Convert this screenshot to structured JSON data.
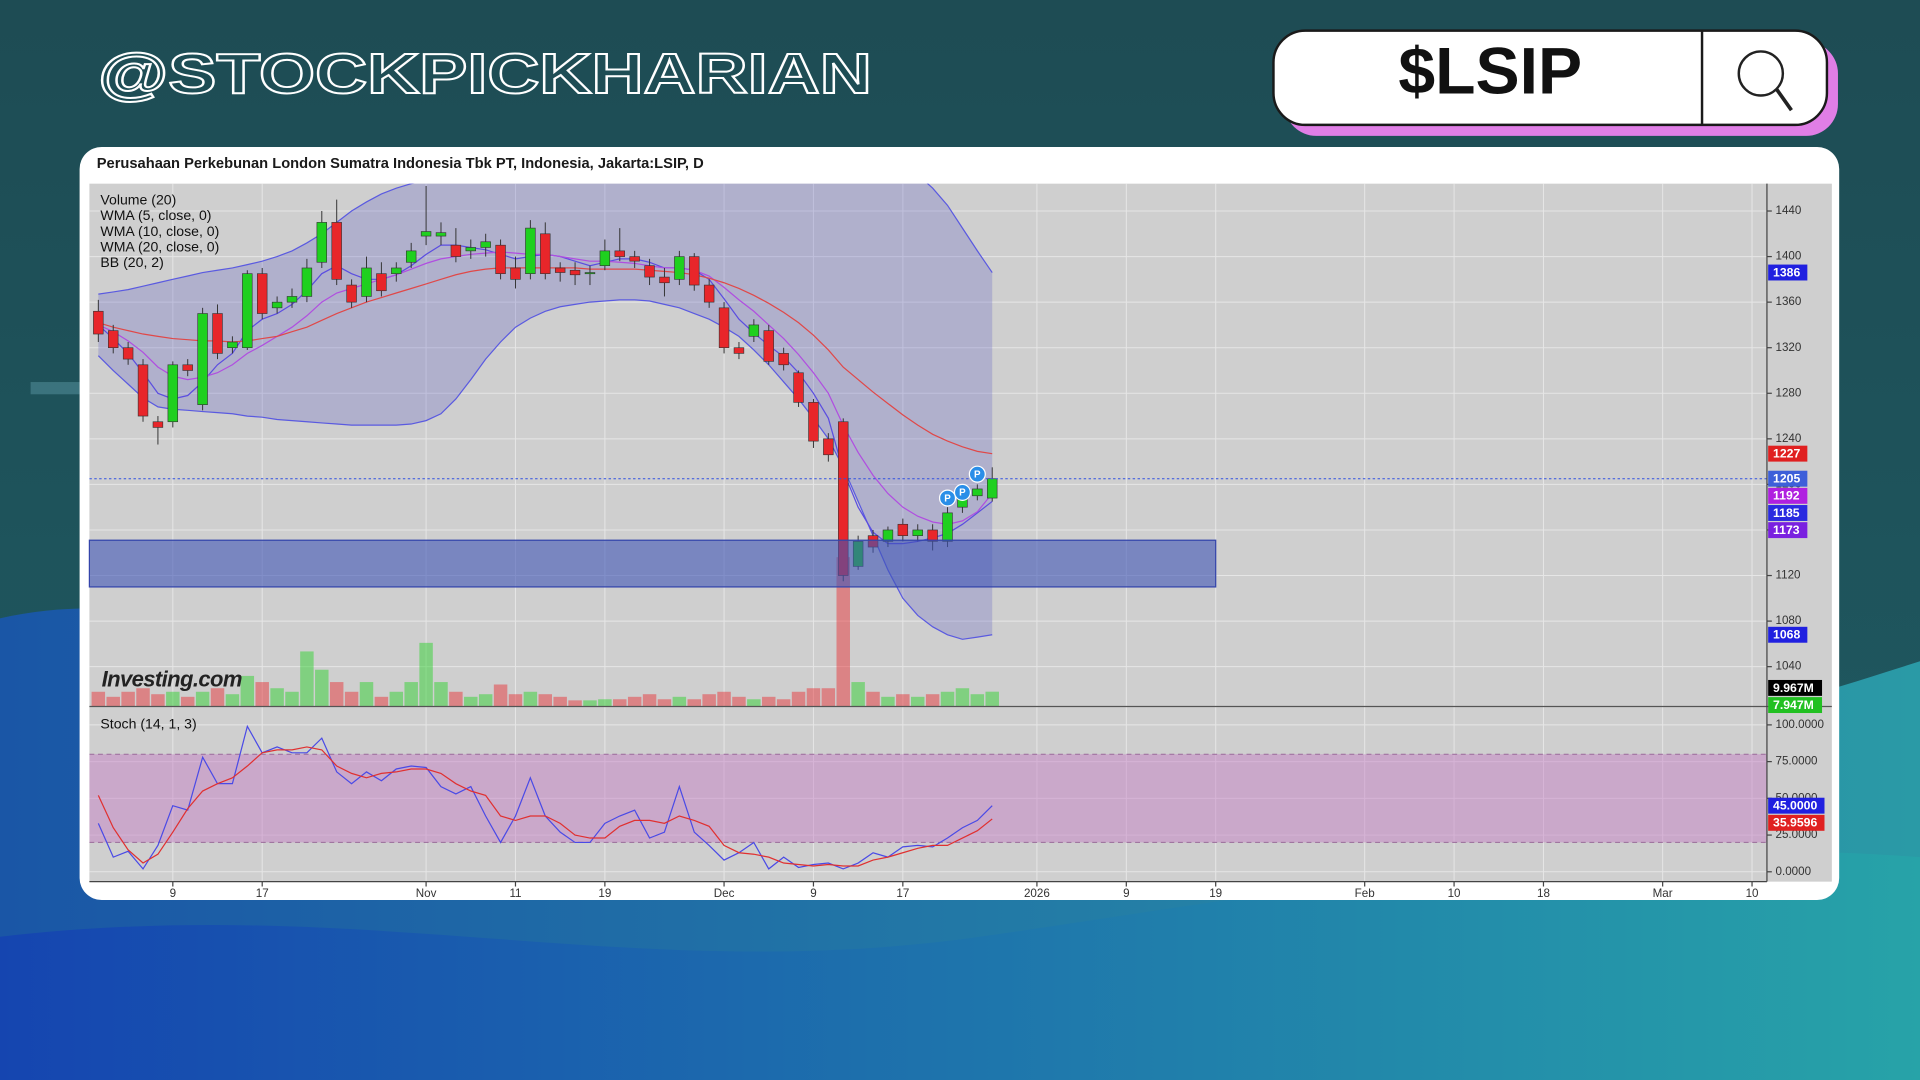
{
  "header": {
    "handle": "@STOCKPICKHARIAN",
    "search": "$LSIP"
  },
  "chart_data": {
    "type": "candlestick",
    "title": "Perusahaan Perkebunan London Sumatra Indonesia Tbk PT, Indonesia, Jakarta:LSIP, D",
    "legend": [
      "Volume (20)",
      "WMA (5, close, 0)",
      "WMA (10, close, 0)",
      "WMA (20, close, 0)",
      "BB (20, 2)"
    ],
    "watermark": "Investing.com",
    "x": [
      0,
      1,
      2,
      3,
      4,
      5,
      6,
      7,
      8,
      9,
      10,
      11,
      12,
      13,
      14,
      15,
      16,
      17,
      18,
      19,
      20,
      21,
      22,
      23,
      24,
      25,
      26,
      27,
      28,
      29,
      30,
      31,
      32,
      33,
      34,
      35,
      36,
      37,
      38,
      39,
      40,
      41,
      42,
      43,
      44,
      45,
      46,
      47,
      48,
      49,
      50,
      51,
      52,
      53,
      54,
      55,
      56,
      57,
      58,
      59,
      60
    ],
    "open": [
      1352,
      1335,
      1320,
      1305,
      1255,
      1255,
      1305,
      1270,
      1350,
      1320,
      1320,
      1385,
      1355,
      1360,
      1365,
      1395,
      1430,
      1375,
      1365,
      1385,
      1385,
      1395,
      1418,
      1418,
      1410,
      1405,
      1408,
      1410,
      1390,
      1385,
      1420,
      1390,
      1388,
      1385,
      1392,
      1405,
      1400,
      1392,
      1382,
      1380,
      1400,
      1375,
      1355,
      1320,
      1330,
      1335,
      1315,
      1298,
      1272,
      1240,
      1255,
      1128,
      1155,
      1150,
      1165,
      1155,
      1160,
      1150,
      1180,
      1190,
      1188
    ],
    "high": [
      1362,
      1340,
      1325,
      1310,
      1260,
      1308,
      1310,
      1355,
      1358,
      1330,
      1388,
      1390,
      1365,
      1372,
      1398,
      1440,
      1450,
      1380,
      1400,
      1395,
      1395,
      1412,
      1462,
      1430,
      1425,
      1415,
      1420,
      1415,
      1400,
      1432,
      1430,
      1395,
      1395,
      1392,
      1415,
      1425,
      1405,
      1398,
      1390,
      1405,
      1403,
      1380,
      1360,
      1325,
      1345,
      1340,
      1320,
      1300,
      1275,
      1245,
      1258,
      1155,
      1160,
      1163,
      1170,
      1165,
      1165,
      1180,
      1195,
      1200,
      1215
    ],
    "low": [
      1325,
      1315,
      1305,
      1255,
      1235,
      1250,
      1295,
      1265,
      1310,
      1315,
      1318,
      1345,
      1350,
      1355,
      1360,
      1390,
      1375,
      1355,
      1360,
      1365,
      1378,
      1390,
      1410,
      1410,
      1395,
      1398,
      1400,
      1380,
      1372,
      1380,
      1380,
      1378,
      1375,
      1375,
      1388,
      1396,
      1390,
      1375,
      1365,
      1375,
      1370,
      1355,
      1315,
      1310,
      1325,
      1305,
      1300,
      1268,
      1232,
      1220,
      1115,
      1125,
      1140,
      1145,
      1150,
      1150,
      1142,
      1145,
      1175,
      1186,
      1185
    ],
    "close": [
      1332,
      1320,
      1310,
      1260,
      1250,
      1305,
      1300,
      1350,
      1315,
      1325,
      1385,
      1350,
      1360,
      1365,
      1390,
      1430,
      1380,
      1360,
      1390,
      1370,
      1390,
      1405,
      1422,
      1421,
      1400,
      1408,
      1413,
      1385,
      1380,
      1425,
      1385,
      1386,
      1384,
      1386,
      1405,
      1400,
      1396,
      1382,
      1377,
      1400,
      1375,
      1360,
      1320,
      1315,
      1340,
      1308,
      1305,
      1272,
      1238,
      1226,
      1120,
      1150,
      1145,
      1160,
      1155,
      1160,
      1150,
      1175,
      1190,
      1196,
      1205
    ],
    "up_color": "#1fd01f",
    "down_color": "#e8262a",
    "volume": [
      7900000,
      5200000,
      7900000,
      9800000,
      6600000,
      7900000,
      5200000,
      7900000,
      9800000,
      6600000,
      16400000,
      13100000,
      9800000,
      7900000,
      29500000,
      19700000,
      13100000,
      7900000,
      13100000,
      5200000,
      7900000,
      13100000,
      34100000,
      13100000,
      7900000,
      5200000,
      6600000,
      11800000,
      6600000,
      7900000,
      6600000,
      5200000,
      3300000,
      3300000,
      3900000,
      3900000,
      5200000,
      6600000,
      3900000,
      5200000,
      3900000,
      6600000,
      7900000,
      5200000,
      3900000,
      5200000,
      3900000,
      7900000,
      9800000,
      9800000,
      80000000,
      13100000,
      7900000,
      5200000,
      6600000,
      5200000,
      6600000,
      7900000,
      9800000,
      6600000,
      7947000
    ],
    "volume_ylim": [
      0,
      280000000
    ],
    "volume_labels": [
      {
        "value": 9967000,
        "label": "9.967M",
        "color": "#000000"
      },
      {
        "value": 7947000,
        "label": "7.947M",
        "color": "#22c022"
      }
    ],
    "bands": {
      "color": "#5a5ae0",
      "fill": "#6a6ac8",
      "upper": [
        1367,
        1369,
        1371,
        1374,
        1377,
        1380,
        1383,
        1386,
        1388,
        1390,
        1393,
        1396,
        1400,
        1405,
        1412,
        1420,
        1430,
        1440,
        1448,
        1455,
        1460,
        1464,
        1467,
        1470,
        1472,
        1474,
        1475,
        1476,
        1476,
        1477,
        1477,
        1476,
        1476,
        1475,
        1475,
        1474,
        1474,
        1474,
        1475,
        1476,
        1478,
        1480,
        1482,
        1484,
        1486,
        1488,
        1490,
        1492,
        1494,
        1496,
        1498,
        1498,
        1496,
        1490,
        1482,
        1472,
        1460,
        1445,
        1425,
        1405,
        1386
      ],
      "lower": [
        1313,
        1300,
        1288,
        1276,
        1268,
        1266,
        1265,
        1264,
        1263,
        1262,
        1260,
        1259,
        1257,
        1256,
        1255,
        1254,
        1253,
        1252,
        1252,
        1252,
        1252,
        1253,
        1256,
        1262,
        1275,
        1292,
        1310,
        1325,
        1338,
        1346,
        1352,
        1356,
        1358,
        1360,
        1361,
        1362,
        1362,
        1361,
        1358,
        1355,
        1350,
        1345,
        1338,
        1330,
        1318,
        1305,
        1290,
        1275,
        1258,
        1240,
        1215,
        1185,
        1155,
        1125,
        1100,
        1085,
        1075,
        1068,
        1064,
        1066,
        1068
      ]
    },
    "overlays": [
      {
        "color": "#5b4de0",
        "values": [
          1340,
          1328,
          1315,
          1298,
          1280,
          1275,
          1278,
          1290,
          1305,
          1315,
          1335,
          1345,
          1350,
          1358,
          1370,
          1385,
          1392,
          1385,
          1380,
          1380,
          1384,
          1392,
          1402,
          1410,
          1410,
          1408,
          1406,
          1402,
          1398,
          1400,
          1402,
          1400,
          1396,
          1392,
          1395,
          1398,
          1398,
          1395,
          1390,
          1390,
          1388,
          1380,
          1363,
          1345,
          1333,
          1322,
          1312,
          1298,
          1280,
          1258,
          1212,
          1180,
          1158,
          1148,
          1148,
          1150,
          1153,
          1157,
          1165,
          1175,
          1185
        ]
      },
      {
        "color": "#b04ee0",
        "values": [
          1340,
          1334,
          1326,
          1316,
          1303,
          1295,
          1292,
          1294,
          1298,
          1305,
          1315,
          1322,
          1330,
          1338,
          1348,
          1360,
          1368,
          1372,
          1376,
          1380,
          1384,
          1389,
          1394,
          1398,
          1400,
          1402,
          1403,
          1404,
          1403,
          1402,
          1402,
          1400,
          1398,
          1396,
          1396,
          1395,
          1394,
          1392,
          1390,
          1390,
          1388,
          1383,
          1373,
          1362,
          1352,
          1340,
          1328,
          1314,
          1298,
          1280,
          1252,
          1228,
          1208,
          1192,
          1180,
          1172,
          1167,
          1165,
          1168,
          1176,
          1192
        ]
      },
      {
        "color": "#e04848",
        "values": [
          1342,
          1338,
          1335,
          1332,
          1330,
          1328,
          1327,
          1326,
          1326,
          1325,
          1326,
          1328,
          1330,
          1334,
          1338,
          1344,
          1350,
          1355,
          1360,
          1364,
          1368,
          1372,
          1376,
          1380,
          1384,
          1387,
          1389,
          1390,
          1390,
          1390,
          1390,
          1390,
          1390,
          1389,
          1389,
          1389,
          1389,
          1388,
          1387,
          1386,
          1384,
          1381,
          1377,
          1372,
          1366,
          1359,
          1351,
          1342,
          1331,
          1318,
          1303,
          1292,
          1281,
          1271,
          1261,
          1252,
          1244,
          1238,
          1233,
          1229,
          1227
        ]
      }
    ],
    "xlim": [
      -0.6,
      112
    ],
    "xticks": [
      {
        "value": 5,
        "label": "9"
      },
      {
        "value": 11,
        "label": "17"
      },
      {
        "value": 22,
        "label": "Nov"
      },
      {
        "value": 28,
        "label": "11"
      },
      {
        "value": 34,
        "label": "19"
      },
      {
        "value": 42,
        "label": "Dec"
      },
      {
        "value": 48,
        "label": "9"
      },
      {
        "value": 54,
        "label": "17"
      },
      {
        "value": 63,
        "label": "2026"
      },
      {
        "value": 69,
        "label": "9"
      },
      {
        "value": 75,
        "label": "19"
      },
      {
        "value": 85,
        "label": "Feb"
      },
      {
        "value": 91,
        "label": "10"
      },
      {
        "value": 97,
        "label": "18"
      },
      {
        "value": 105,
        "label": "Mar"
      },
      {
        "value": 111,
        "label": "10"
      }
    ],
    "ylim": [
      1005,
      1464
    ],
    "yticks": [
      1040,
      1080,
      1120,
      1160,
      1200,
      1240,
      1280,
      1320,
      1360,
      1400,
      1440
    ],
    "grid": true,
    "price_labels": [
      {
        "value": 1386,
        "color": "#2020e0"
      },
      {
        "value": 1227,
        "color": "#e02020"
      },
      {
        "value": 1205,
        "color": "#3d5fd9"
      },
      {
        "value": 1192,
        "color": "#b020e0"
      },
      {
        "value": 1185,
        "color": "#2a2ae0"
      },
      {
        "value": 1173,
        "color": "#7a20e0"
      },
      {
        "value": 1068,
        "color": "#2020e0"
      }
    ],
    "zone": {
      "low": 1110,
      "high": 1151,
      "x_end": 75,
      "color": "#3f55b5"
    },
    "pivots": [
      {
        "x": 57,
        "y": 1188,
        "label": "P"
      },
      {
        "x": 58,
        "y": 1193,
        "label": "P"
      },
      {
        "x": 59,
        "y": 1209,
        "label": "P"
      }
    ],
    "stoch": {
      "title": "Stoch (14, 1, 3)",
      "k": {
        "color": "#4a4ae6",
        "values": [
          33,
          10,
          14,
          2,
          18,
          45,
          42,
          78,
          60,
          60,
          99,
          81,
          85,
          81,
          81,
          91,
          68,
          60,
          68,
          62,
          70,
          72,
          71,
          58,
          53,
          58,
          38,
          20,
          38,
          64,
          38,
          27,
          20,
          20,
          33,
          38,
          42,
          23,
          27,
          58,
          27,
          18,
          8,
          13,
          20,
          2,
          10,
          3,
          5,
          6,
          2,
          6,
          13,
          10,
          17,
          18,
          17,
          23,
          30,
          35,
          45
        ]
      },
      "d": {
        "color": "#e03030",
        "values": [
          52,
          30,
          15,
          6,
          12,
          27,
          43,
          55,
          60,
          64,
          72,
          81,
          83,
          83,
          85,
          83,
          72,
          67,
          64,
          67,
          68,
          70,
          70,
          67,
          60,
          55,
          52,
          38,
          35,
          38,
          38,
          33,
          25,
          23,
          23,
          31,
          35,
          35,
          33,
          38,
          35,
          31,
          18,
          13,
          12,
          10,
          6,
          5,
          4,
          5,
          4,
          4,
          8,
          10,
          13,
          16,
          18,
          18,
          23,
          28,
          35.9596
        ]
      },
      "ylim": [
        -6.7,
        112.5
      ],
      "yticks": [
        {
          "value": 0,
          "label": "0.0000"
        },
        {
          "value": 25,
          "label": "25.0000"
        },
        {
          "value": 50,
          "label": "50.0000"
        },
        {
          "value": 75,
          "label": "75.0000"
        },
        {
          "value": 100,
          "label": "100.0000"
        }
      ],
      "bands": [
        20,
        80
      ],
      "labels": [
        {
          "value": 45,
          "label": "45.0000",
          "color": "#2020e0"
        },
        {
          "value": 35.9596,
          "color": "#e02020"
        }
      ]
    }
  }
}
